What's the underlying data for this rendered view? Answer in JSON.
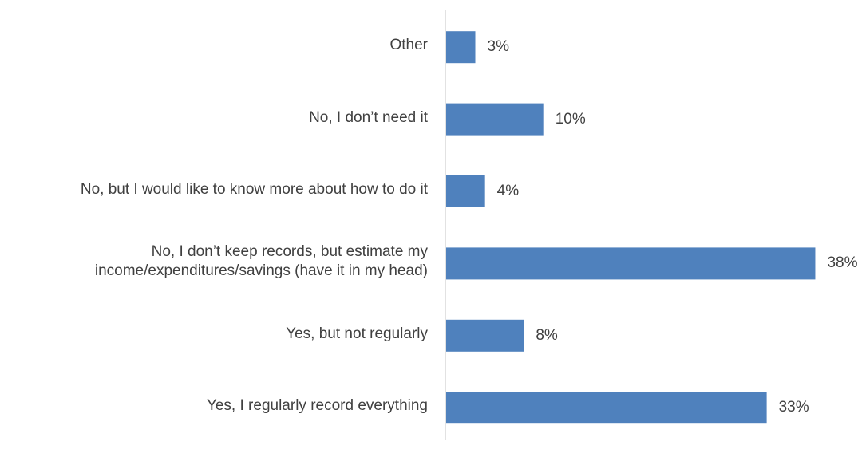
{
  "chart_data": {
    "type": "bar",
    "orientation": "horizontal",
    "categories": [
      "Other",
      "No, I don’t need it",
      "No, but I would like to know more about how to do it",
      "No, I don’t keep records, but estimate my\nincome/expenditures/savings (have it in my head)",
      "Yes, but not regularly",
      "Yes, I regularly record everything"
    ],
    "values": [
      3,
      10,
      4,
      38,
      8,
      33
    ],
    "value_labels": [
      "3%",
      "10%",
      "4%",
      "38%",
      "8%",
      "33%"
    ],
    "unit": "%",
    "xlim": [
      0,
      40
    ],
    "grid": false,
    "legend": "none",
    "bar_color": "#4f81bd",
    "axis_color": "#d9d9d9",
    "text_color": "#404040"
  }
}
